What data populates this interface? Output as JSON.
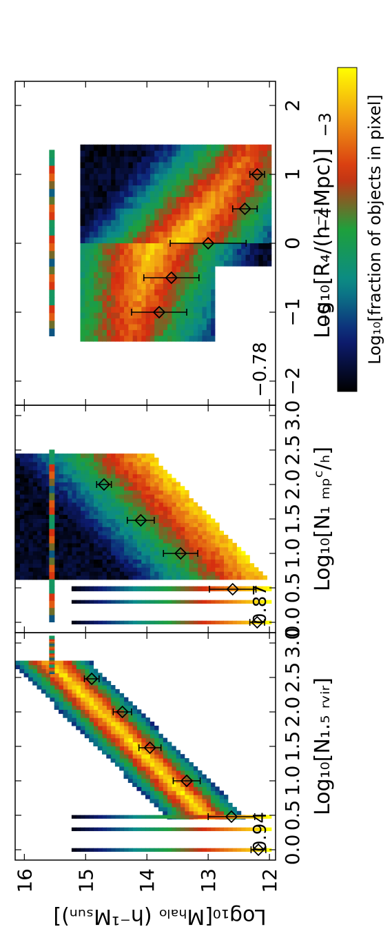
{
  "figure": {
    "ylabel": "Log₁₀[Mₕₐₗₒ (h⁻¹Mₛᵤₙ)]",
    "colorbar_label": "Log₁₀[fraction of objects in pixel]",
    "colorbar_ticks": [
      "−5",
      "−4",
      "−3"
    ],
    "colorbar_range": [
      -5.8,
      -2.4
    ],
    "colors": {
      "low": "#000000",
      "navy": "#0e1e78",
      "teal": "#0a8a8a",
      "green": "#1ea03c",
      "red": "#d42a10",
      "orange": "#f09614",
      "high": "#ffff00"
    }
  },
  "chart_data": [
    {
      "type": "heatmap",
      "panel_label": "0.94",
      "xlabel": "Log₁₀[N₁.₅ ᵣᵥᵢᵣ]",
      "x_ticks": [
        "0.0",
        "0.5",
        "1.0",
        "1.5",
        "2.0",
        "2.5",
        "3.0"
      ],
      "y_ticks": [
        "16",
        "15",
        "14",
        "13",
        "12"
      ],
      "xlim": [
        -0.15,
        3.15
      ],
      "ylim": [
        11.9,
        16.15
      ],
      "points": [
        {
          "x": 0.0,
          "y": 12.18,
          "err": 0.12
        },
        {
          "x": 0.48,
          "y": 12.62,
          "err": 0.38
        },
        {
          "x": 1.0,
          "y": 13.35,
          "err": 0.22
        },
        {
          "x": 1.48,
          "y": 13.95,
          "err": 0.18
        },
        {
          "x": 2.0,
          "y": 14.4,
          "err": 0.15
        },
        {
          "x": 2.48,
          "y": 14.9,
          "err": 0.12
        }
      ]
    },
    {
      "type": "heatmap",
      "panel_label": "0.87",
      "xlabel": "Log₁₀[N₁ ₘₚᶜ/ₕ]",
      "x_ticks": [
        "0.0",
        "0.5",
        "1.0",
        "1.5",
        "2.0",
        "2.5",
        "3.0"
      ],
      "y_ticks": [],
      "xlim": [
        -0.15,
        3.15
      ],
      "ylim": [
        11.9,
        16.15
      ],
      "points": [
        {
          "x": 0.0,
          "y": 12.2,
          "err": 0.12
        },
        {
          "x": 0.48,
          "y": 12.6,
          "err": 0.38
        },
        {
          "x": 1.0,
          "y": 13.45,
          "err": 0.28
        },
        {
          "x": 1.48,
          "y": 14.1,
          "err": 0.22
        },
        {
          "x": 2.0,
          "y": 14.7,
          "err": 0.12
        }
      ]
    },
    {
      "type": "heatmap",
      "panel_label": "−0.78",
      "xlabel": "Log₁₀[R₄/(h⁻¹Mpc)]",
      "x_ticks": [
        "−2",
        "−1",
        "0",
        "1",
        "2"
      ],
      "x_tick_values": [
        -2,
        -1,
        0,
        1,
        2
      ],
      "y_ticks": [],
      "xlim": [
        -2.35,
        2.35
      ],
      "ylim": [
        11.9,
        16.15
      ],
      "points": [
        {
          "x": -1.0,
          "y": 13.8,
          "err": 0.45
        },
        {
          "x": -0.5,
          "y": 13.6,
          "err": 0.45
        },
        {
          "x": 0.0,
          "y": 13.0,
          "err": 0.62
        },
        {
          "x": 0.5,
          "y": 12.4,
          "err": 0.2
        },
        {
          "x": 1.0,
          "y": 12.2,
          "err": 0.12
        }
      ]
    }
  ]
}
